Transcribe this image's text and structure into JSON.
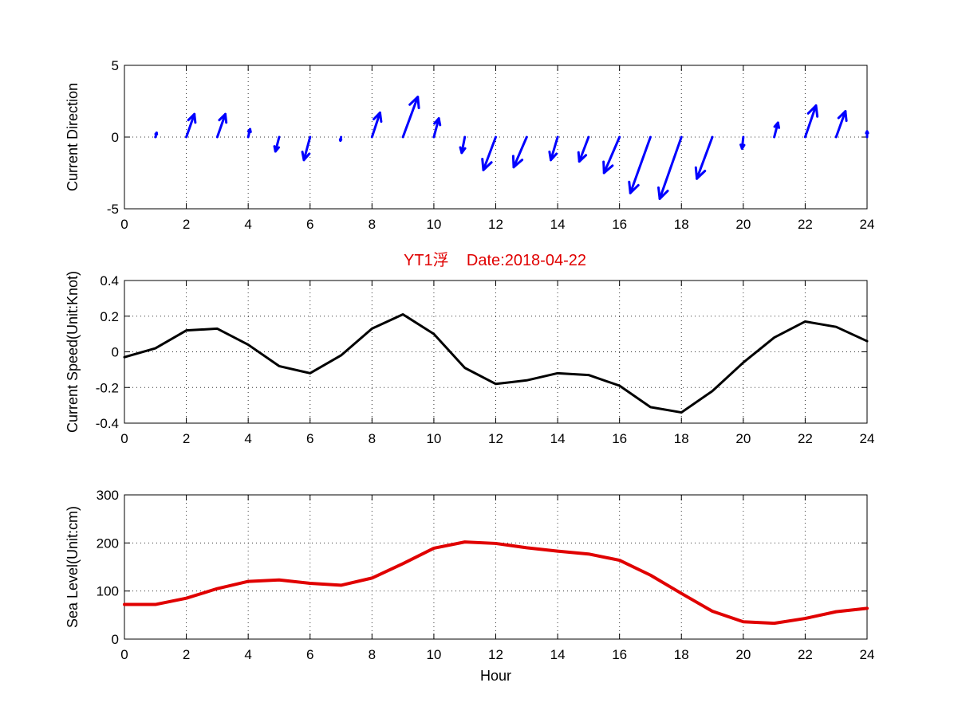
{
  "chart_data": [
    {
      "type": "quiver",
      "ylabel": "Current Direction",
      "xlim": [
        0,
        24
      ],
      "ylim": [
        -5,
        5
      ],
      "xticks": [
        0,
        2,
        4,
        6,
        8,
        10,
        12,
        14,
        16,
        18,
        20,
        22,
        24
      ],
      "yticks": [
        -5,
        0,
        5
      ],
      "grid": true,
      "color": "#0000ff",
      "arrows": [
        {
          "hour": 1,
          "u": 0.04,
          "v": 0.3
        },
        {
          "hour": 2,
          "u": 0.26,
          "v": 1.6
        },
        {
          "hour": 3,
          "u": 0.26,
          "v": 1.6
        },
        {
          "hour": 4,
          "u": 0.06,
          "v": 0.55
        },
        {
          "hour": 5,
          "u": -0.12,
          "v": -1.0
        },
        {
          "hour": 6,
          "u": -0.2,
          "v": -1.6
        },
        {
          "hour": 7,
          "u": -0.02,
          "v": -0.25
        },
        {
          "hour": 8,
          "u": 0.26,
          "v": 1.7
        },
        {
          "hour": 9,
          "u": 0.48,
          "v": 2.8
        },
        {
          "hour": 10,
          "u": 0.16,
          "v": 1.3
        },
        {
          "hour": 11,
          "u": -0.1,
          "v": -1.1
        },
        {
          "hour": 12,
          "u": -0.4,
          "v": -2.3
        },
        {
          "hour": 13,
          "u": -0.42,
          "v": -2.1
        },
        {
          "hour": 14,
          "u": -0.22,
          "v": -1.6
        },
        {
          "hour": 15,
          "u": -0.3,
          "v": -1.7
        },
        {
          "hour": 16,
          "u": -0.5,
          "v": -2.5
        },
        {
          "hour": 17,
          "u": -0.65,
          "v": -3.9
        },
        {
          "hour": 18,
          "u": -0.7,
          "v": -4.3
        },
        {
          "hour": 19,
          "u": -0.5,
          "v": -2.9
        },
        {
          "hour": 20,
          "u": -0.04,
          "v": -0.8
        },
        {
          "hour": 21,
          "u": 0.12,
          "v": 1.0
        },
        {
          "hour": 22,
          "u": 0.35,
          "v": 2.2
        },
        {
          "hour": 23,
          "u": 0.3,
          "v": 1.8
        },
        {
          "hour": 24,
          "u": 0.0,
          "v": 0.4
        }
      ]
    },
    {
      "type": "line",
      "title": "YT1浮    Date:2018-04-22",
      "title_color": "#e00000",
      "ylabel": "Current Speed(Unit:Knot)",
      "xlim": [
        0,
        24
      ],
      "ylim": [
        -0.4,
        0.4
      ],
      "xticks": [
        0,
        2,
        4,
        6,
        8,
        10,
        12,
        14,
        16,
        18,
        20,
        22,
        24
      ],
      "yticks": [
        -0.4,
        -0.2,
        0,
        0.2,
        0.4
      ],
      "ytick_labels": [
        "-0.4",
        "-0.2",
        "0",
        "0.2",
        "0.4"
      ],
      "grid": true,
      "series": [
        {
          "color": "#000000",
          "x": [
            0,
            1,
            2,
            3,
            4,
            5,
            6,
            7,
            8,
            9,
            10,
            11,
            12,
            13,
            14,
            15,
            16,
            17,
            18,
            19,
            20,
            21,
            22,
            23,
            24
          ],
          "values": [
            -0.03,
            0.02,
            0.12,
            0.13,
            0.04,
            -0.08,
            -0.12,
            -0.02,
            0.13,
            0.21,
            0.1,
            -0.09,
            -0.18,
            -0.16,
            -0.12,
            -0.13,
            -0.19,
            -0.31,
            -0.34,
            -0.22,
            -0.06,
            0.08,
            0.17,
            0.14,
            0.06
          ]
        }
      ]
    },
    {
      "type": "line",
      "xlabel": "Hour",
      "ylabel": "Sea Level(Unit:cm)",
      "xlim": [
        0,
        24
      ],
      "ylim": [
        0,
        300
      ],
      "xticks": [
        0,
        2,
        4,
        6,
        8,
        10,
        12,
        14,
        16,
        18,
        20,
        22,
        24
      ],
      "yticks": [
        0,
        100,
        200,
        300
      ],
      "grid": true,
      "series": [
        {
          "color": "#e00000",
          "x": [
            0,
            1,
            2,
            3,
            4,
            5,
            6,
            7,
            8,
            9,
            10,
            11,
            12,
            13,
            14,
            15,
            16,
            17,
            18,
            19,
            20,
            21,
            22,
            23,
            24
          ],
          "values": [
            72,
            72,
            85,
            105,
            120,
            123,
            116,
            112,
            127,
            157,
            189,
            202,
            199,
            190,
            183,
            177,
            164,
            133,
            95,
            58,
            36,
            33,
            43,
            57,
            64
          ]
        }
      ]
    }
  ]
}
